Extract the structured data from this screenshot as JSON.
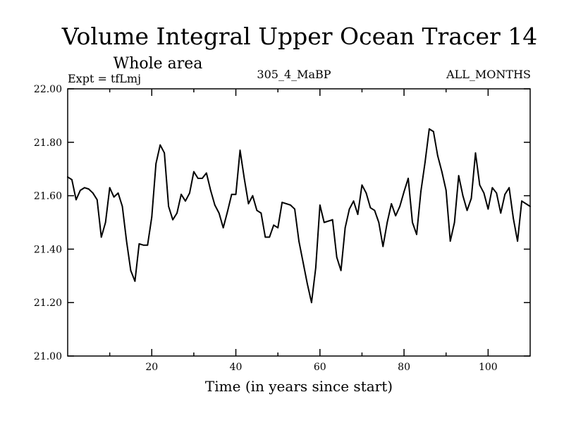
{
  "chart_data": {
    "type": "line",
    "title": "Volume Integral Upper Ocean Tracer 14",
    "subtitle": "Whole area",
    "annotations": {
      "left": "Expt = tfLmj",
      "center": "305_4_MaBP",
      "right": "ALL_MONTHS"
    },
    "xlabel": "Time (in years since start)",
    "ylabel": "",
    "xlim": [
      0,
      110
    ],
    "ylim": [
      21.0,
      22.0
    ],
    "x_ticks": [
      20,
      40,
      60,
      80,
      100
    ],
    "x_tick_labels": [
      "20",
      "40",
      "60",
      "80",
      "100"
    ],
    "y_ticks": [
      21.0,
      21.2,
      21.4,
      21.6,
      21.8,
      22.0
    ],
    "y_tick_labels": [
      "21.00",
      "21.20",
      "21.40",
      "21.60",
      "21.80",
      "22.00"
    ],
    "grid": false,
    "color": "#000000",
    "series": [
      {
        "name": "Tracer 14",
        "x": [
          0,
          1,
          2,
          3,
          4,
          5,
          6,
          7,
          8,
          9,
          10,
          11,
          12,
          13,
          14,
          15,
          16,
          17,
          18,
          19,
          20,
          21,
          22,
          23,
          24,
          25,
          26,
          27,
          28,
          29,
          30,
          31,
          32,
          33,
          34,
          35,
          36,
          37,
          38,
          39,
          40,
          41,
          42,
          43,
          44,
          45,
          46,
          47,
          48,
          49,
          50,
          51,
          52,
          53,
          54,
          55,
          56,
          57,
          58,
          59,
          60,
          61,
          62,
          63,
          64,
          65,
          66,
          67,
          68,
          69,
          70,
          71,
          72,
          73,
          74,
          75,
          76,
          77,
          78,
          79,
          80,
          81,
          82,
          83,
          84,
          85,
          86,
          87,
          88,
          89,
          90,
          91,
          92,
          93,
          94,
          95,
          96,
          97,
          98,
          99,
          100,
          101,
          102,
          103,
          104,
          105,
          106,
          107,
          108,
          109,
          110
        ],
        "values": [
          21.67,
          21.66,
          21.585,
          21.62,
          21.63,
          21.625,
          21.61,
          21.585,
          21.445,
          21.5,
          21.63,
          21.595,
          21.61,
          21.56,
          21.43,
          21.32,
          21.28,
          21.42,
          21.415,
          21.415,
          21.52,
          21.72,
          21.79,
          21.76,
          21.56,
          21.51,
          21.535,
          21.605,
          21.58,
          21.61,
          21.69,
          21.665,
          21.665,
          21.685,
          21.62,
          21.565,
          21.535,
          21.48,
          21.54,
          21.605,
          21.605,
          21.77,
          21.665,
          21.57,
          21.6,
          21.545,
          21.535,
          21.445,
          21.445,
          21.49,
          21.48,
          21.575,
          21.57,
          21.565,
          21.55,
          21.43,
          21.35,
          21.27,
          21.2,
          21.33,
          21.565,
          21.5,
          21.505,
          21.51,
          21.37,
          21.32,
          21.48,
          21.55,
          21.58,
          21.53,
          21.64,
          21.61,
          21.555,
          21.545,
          21.5,
          21.41,
          21.5,
          21.57,
          21.525,
          21.56,
          21.615,
          21.665,
          21.5,
          21.455,
          21.615,
          21.725,
          21.85,
          21.84,
          21.75,
          21.69,
          21.62,
          21.43,
          21.5,
          21.675,
          21.6,
          21.545,
          21.59,
          21.76,
          21.64,
          21.61,
          21.55,
          21.63,
          21.61,
          21.535,
          21.605,
          21.63,
          21.515,
          21.43,
          21.58,
          21.57,
          21.56
        ]
      }
    ]
  }
}
